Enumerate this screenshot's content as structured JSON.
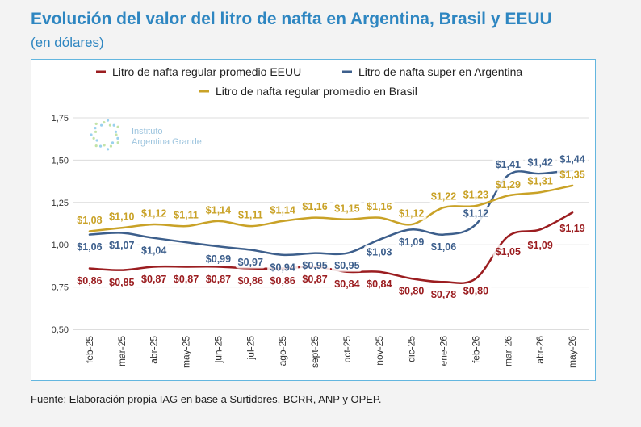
{
  "title": "Evolución del valor del litro de nafta en Argentina, Brasil y EEUU",
  "subtitle": "(en dólares)",
  "source": "Fuente: Elaboración propia IAG en base a Surtidores, BCRR, ANP y OPEP.",
  "watermark": {
    "line1": "Instituto",
    "line2": "Argentina Grande"
  },
  "colors": {
    "usa": "#9b1d20",
    "arg": "#3d5f8c",
    "bra": "#c9a227",
    "grid": "#dcdcdc",
    "axis": "#333333"
  },
  "chart_data": {
    "type": "line",
    "x": [
      "feb-25",
      "mar-25",
      "abr-25",
      "may-25",
      "jun-25",
      "jul-25",
      "ago-25",
      "sept-25",
      "oct-25",
      "nov-25",
      "dic-25",
      "ene-26",
      "feb-26",
      "mar-26",
      "abr-26",
      "may-26"
    ],
    "ylim": [
      0.5,
      1.75
    ],
    "yticks": [
      "0,50",
      "0,75",
      "1,00",
      "1,25",
      "1,50",
      "1,75"
    ],
    "ytick_values": [
      0.5,
      0.75,
      1.0,
      1.25,
      1.5,
      1.75
    ],
    "grid": true,
    "legend_position": "top",
    "series": [
      {
        "key": "usa",
        "name": "Litro de nafta regular promedio EEUU",
        "values": [
          0.86,
          0.85,
          0.87,
          0.87,
          0.87,
          0.86,
          0.86,
          0.87,
          0.84,
          0.84,
          0.8,
          0.78,
          0.8,
          1.05,
          1.09,
          1.19
        ],
        "labels": [
          "$0,86",
          "$0,85",
          "$0,87",
          "$0,87",
          "$0,87",
          "$0,86",
          "$0,86",
          "$0,87",
          "$0,84",
          "$0,84",
          "$0,80",
          "$0,78",
          "$0,80",
          "$1,05",
          "$1,09",
          "$1,19"
        ]
      },
      {
        "key": "arg",
        "name": "Litro de nafta super en Argentina",
        "values": [
          1.06,
          1.07,
          1.04,
          null,
          0.99,
          0.97,
          0.94,
          0.95,
          0.95,
          1.03,
          1.09,
          1.06,
          1.12,
          1.41,
          1.42,
          1.44
        ],
        "labels": [
          "$1,06",
          "$1,07",
          "$1,04",
          "",
          "$0,99",
          "$0,97",
          "$0,94",
          "$0,95",
          "$0,95",
          "$1,03",
          "$1,09",
          "$1,06",
          "$1,12",
          "$1,41",
          "$1,42",
          "$1,44"
        ]
      },
      {
        "key": "bra",
        "name": "Litro de nafta regular promedio en Brasil",
        "values": [
          1.08,
          1.1,
          1.12,
          1.11,
          1.14,
          1.11,
          1.14,
          1.16,
          1.15,
          1.16,
          1.12,
          1.22,
          1.23,
          1.29,
          1.31,
          1.35
        ],
        "labels": [
          "$1,08",
          "$1,10",
          "$1,12",
          "$1,11",
          "$1,14",
          "$1,11",
          "$1,14",
          "$1,16",
          "$1,15",
          "$1,16",
          "$1,12",
          "$1,22",
          "$1,23",
          "$1,29",
          "$1,31",
          "$1,35"
        ]
      }
    ]
  }
}
